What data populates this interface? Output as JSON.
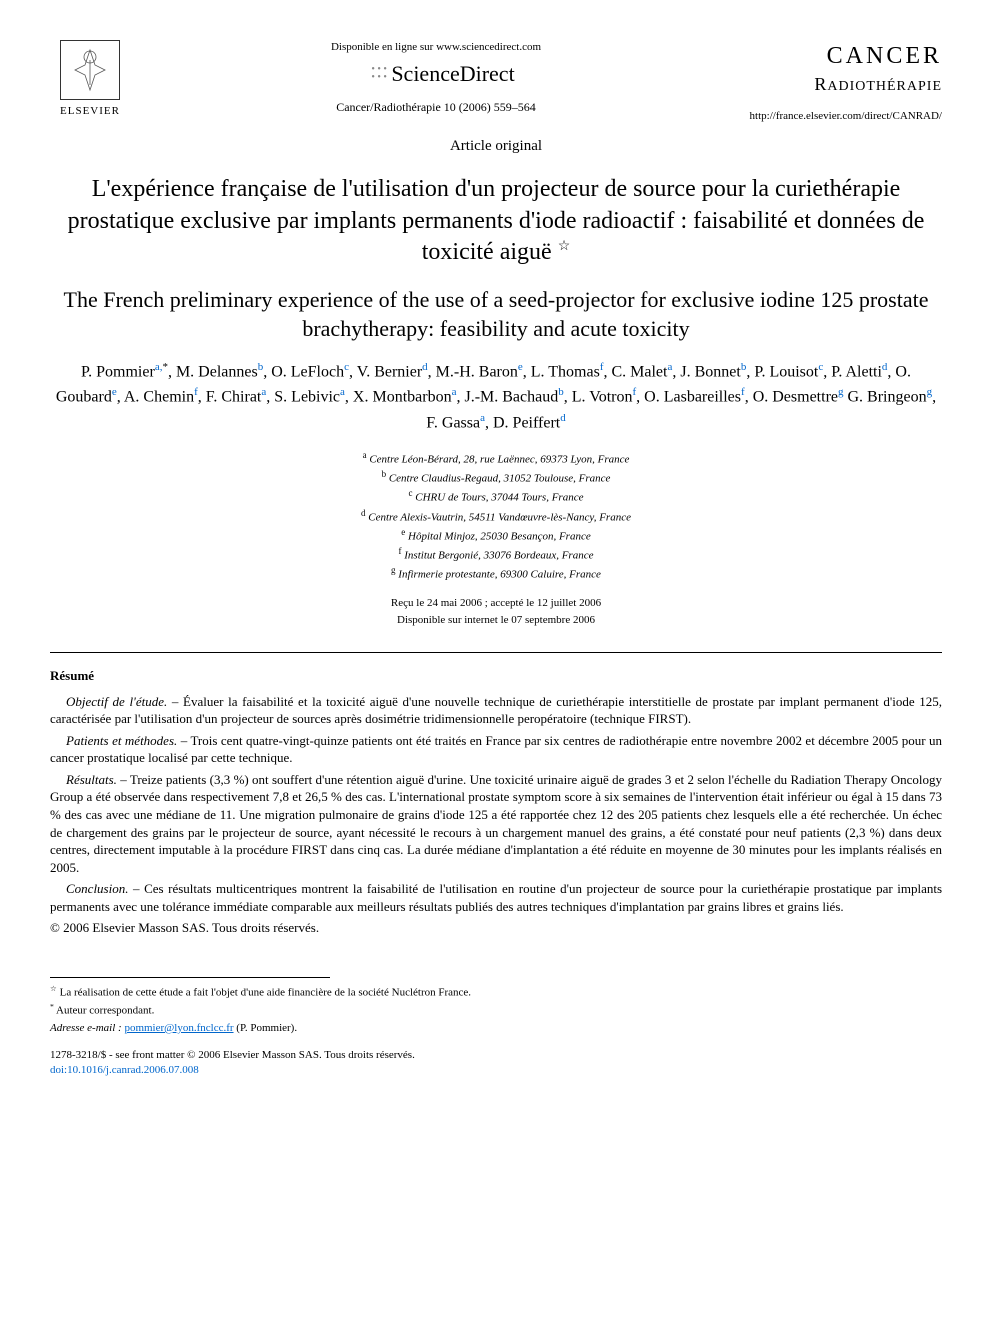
{
  "header": {
    "online_text": "Disponible en ligne sur www.sciencedirect.com",
    "sciencedirect": "ScienceDirect",
    "elsevier": "ELSEVIER",
    "citation": "Cancer/Radiothérapie 10 (2006) 559–564",
    "journal_title_1": "CANCER",
    "journal_title_2": "RADIOTHÉRAPIE",
    "journal_url": "http://france.elsevier.com/direct/CANRAD/"
  },
  "article_type": "Article original",
  "title_fr": "L'expérience française de l'utilisation d'un projecteur de source pour la curiethérapie prostatique exclusive par implants permanents d'iode radioactif : faisabilité et données de toxicité aiguë",
  "title_en": "The French preliminary experience of the use of a seed-projector for exclusive iodine 125 prostate brachytherapy: feasibility and acute toxicity",
  "authors_html": "P. Pommier<sup>a,</sup><sup class='star-sup'>*</sup>, M. Delannes<sup>b</sup>, O. LeFloch<sup>c</sup>, V. Bernier<sup>d</sup>, M.-H. Baron<sup>e</sup>, L. Thomas<sup>f</sup>, C. Malet<sup>a</sup>, J. Bonnet<sup>b</sup>, P. Louisot<sup>c</sup>, P. Aletti<sup>d</sup>, O. Goubard<sup>e</sup>, A. Chemin<sup>f</sup>, F. Chirat<sup>a</sup>, S. Lebivic<sup>a</sup>, X. Montbarbon<sup>a</sup>, J.-M. Bachaud<sup>b</sup>, L. Votron<sup>f</sup>, O. Lasbareilles<sup>f</sup>, O. Desmettre<sup>g</sup> G. Bringeon<sup>g</sup>, F. Gassa<sup>a</sup>, D. Peiffert<sup>d</sup>",
  "affiliations": {
    "a": "Centre Léon-Bérard, 28, rue Laënnec, 69373 Lyon, France",
    "b": "Centre Claudius-Regaud, 31052 Toulouse, France",
    "c": "CHRU de Tours, 37044 Tours, France",
    "d": "Centre Alexis-Vautrin, 54511 Vandœuvre-lès-Nancy, France",
    "e": "Hôpital Minjoz, 25030 Besançon, France",
    "f": "Institut Bergonié, 33076 Bordeaux, France",
    "g": "Infirmerie protestante, 69300 Caluire, France"
  },
  "dates": {
    "received": "Reçu le 24 mai 2006 ; accepté le 12 juillet 2006",
    "online": "Disponible sur internet le 07 septembre 2006"
  },
  "resume": {
    "heading": "Résumé",
    "objectif_label": "Objectif de l'étude. –",
    "objectif": "Évaluer la faisabilité et la toxicité aiguë d'une nouvelle technique de curiethérapie interstitielle de prostate par implant permanent d'iode 125, caractérisée par l'utilisation d'un projecteur de sources après dosimétrie tridimensionnelle peropératoire (technique FIRST).",
    "patients_label": "Patients et méthodes. –",
    "patients": "Trois cent quatre-vingt-quinze patients ont été traités en France par six centres de radiothérapie entre novembre 2002 et décembre 2005 pour un cancer prostatique localisé par cette technique.",
    "resultats_label": "Résultats. –",
    "resultats": "Treize patients (3,3 %) ont souffert d'une rétention aiguë d'urine. Une toxicité urinaire aiguë de grades 3 et 2 selon l'échelle du Radiation Therapy Oncology Group a été observée dans respectivement 7,8 et 26,5 % des cas. L'international prostate symptom score à six semaines de l'intervention était inférieur ou égal à 15 dans 73 % des cas avec une médiane de 11. Une migration pulmonaire de grains d'iode 125 a été rapportée chez 12 des 205 patients chez lesquels elle a été recherchée. Un échec de chargement des grains par le projecteur de source, ayant nécessité le recours à un chargement manuel des grains, a été constaté pour neuf patients (2,3 %) dans deux centres, directement imputable à la procédure FIRST dans cinq cas. La durée médiane d'implantation a été réduite en moyenne de 30 minutes pour les implants réalisés en 2005.",
    "conclusion_label": "Conclusion. –",
    "conclusion": "Ces résultats multicentriques montrent la faisabilité de l'utilisation en routine d'un projecteur de source pour la curiethérapie prostatique par implants permanents avec une tolérance immédiate comparable aux meilleurs résultats publiés des autres techniques d'implantation par grains libres et grains liés.",
    "copyright": "© 2006 Elsevier Masson SAS. Tous droits réservés."
  },
  "footnotes": {
    "star": "La réalisation de cette étude a fait l'objet d'une aide financière de la société Nuclétron France.",
    "corresponding": "Auteur correspondant.",
    "email_label": "Adresse e-mail :",
    "email": "pommier@lyon.fnclcc.fr",
    "email_person": "(P. Pommier)."
  },
  "footer": {
    "issn": "1278-3218/$ - see front matter © 2006 Elsevier Masson SAS. Tous droits réservés.",
    "doi": "doi:10.1016/j.canrad.2006.07.008"
  },
  "colors": {
    "link": "#0066cc",
    "text": "#000000",
    "bg": "#ffffff"
  }
}
